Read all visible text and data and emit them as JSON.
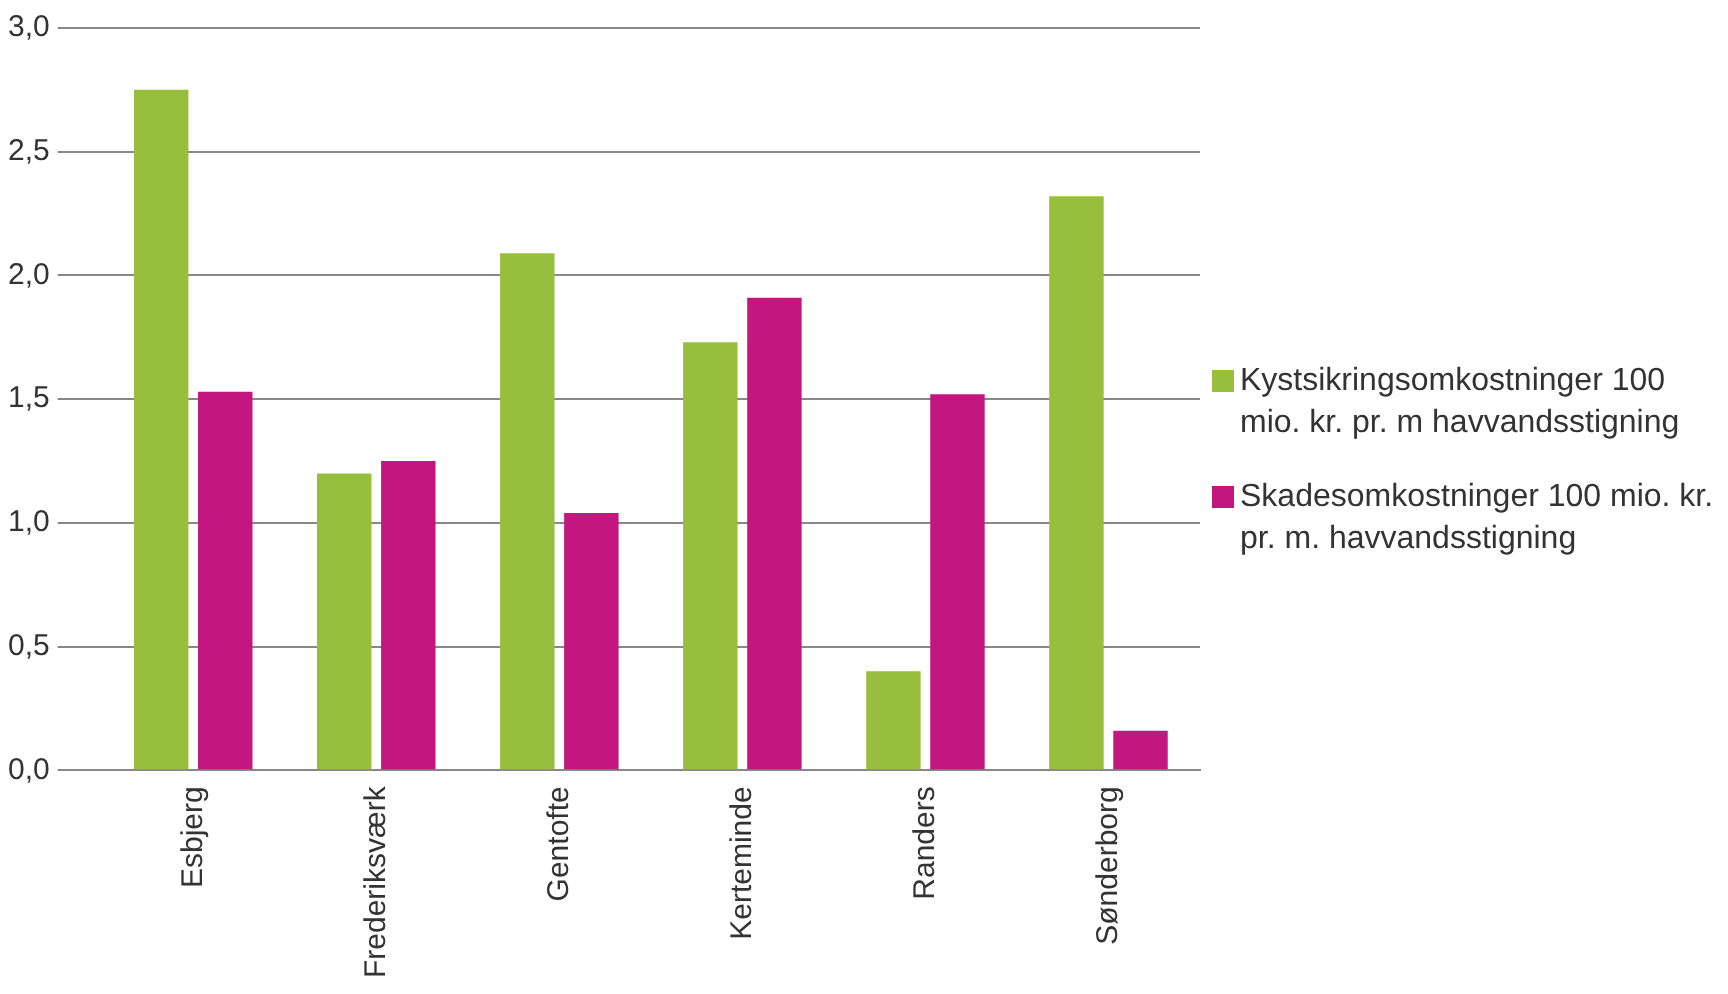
{
  "chart_data": {
    "type": "bar",
    "categories": [
      "Esbjerg",
      "Frederiksværk",
      "Gentofte",
      "Kerteminde",
      "Randers",
      "Sønderborg"
    ],
    "series": [
      {
        "name": "Kystsikringsomkostninger 100 mio. kr. pr. m havvandsstigning",
        "color": "#97bf3d",
        "values": [
          2.75,
          1.2,
          2.09,
          1.73,
          0.4,
          2.32
        ]
      },
      {
        "name": "Skadesomkostninger 100 mio. kr. pr. m. havvandsstigning",
        "color": "#c3177f",
        "values": [
          1.53,
          1.25,
          1.04,
          1.91,
          1.52,
          0.16
        ]
      }
    ],
    "ylim": [
      0,
      3
    ],
    "yticks": [
      {
        "value": 0,
        "label": "0,0"
      },
      {
        "value": 0.5,
        "label": "0,5"
      },
      {
        "value": 1,
        "label": "1,0"
      },
      {
        "value": 1.5,
        "label": "1,5"
      },
      {
        "value": 2,
        "label": "2,0"
      },
      {
        "value": 2.5,
        "label": "2,5"
      },
      {
        "value": 3,
        "label": "3,0"
      }
    ],
    "grid": "y",
    "legend": "right"
  }
}
